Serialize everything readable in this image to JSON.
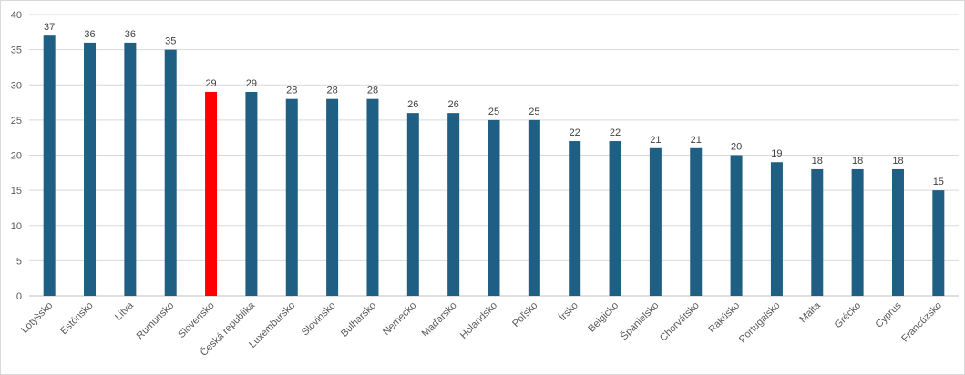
{
  "chart_data": {
    "type": "bar",
    "title": "",
    "xlabel": "",
    "ylabel": "",
    "ylim": [
      0,
      40
    ],
    "yticks": [
      0,
      5,
      10,
      15,
      20,
      25,
      30,
      35,
      40
    ],
    "grid": true,
    "legend": "none",
    "categories": [
      "Lotyšsko",
      "Estónsko",
      "Litva",
      "Rumunsko",
      "Slovensko",
      "Česká republika",
      "Luxembursko",
      "Slovinsko",
      "Bulharsko",
      "Nemecko",
      "Maďarsko",
      "Holandsko",
      "Poľsko",
      "Írsko",
      "Belgicko",
      "Španielsko",
      "Chorvátsko",
      "Rakúsko",
      "Portugalsko",
      "Malta",
      "Grécko",
      "Cyprus",
      "Francúzsko"
    ],
    "values": [
      37,
      36,
      36,
      35,
      29,
      29,
      28,
      28,
      28,
      26,
      26,
      25,
      25,
      22,
      22,
      21,
      21,
      20,
      19,
      18,
      18,
      18,
      15
    ],
    "data_labels": [
      "37",
      "36",
      "36",
      "35",
      "29",
      "29",
      "28",
      "28",
      "28",
      "26",
      "26",
      "25",
      "25",
      "22",
      "22",
      "21",
      "21",
      "20",
      "19",
      "18",
      "18",
      "18",
      "15"
    ],
    "bar_color": "#1f5f84",
    "highlight_category": "Slovensko",
    "highlight_color": "#ff0000"
  }
}
